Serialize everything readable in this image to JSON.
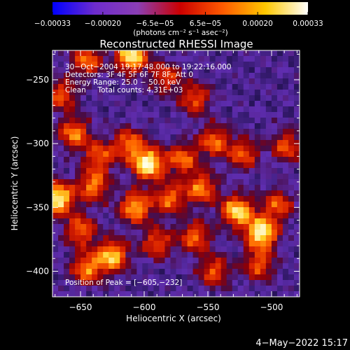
{
  "chart_data": {
    "type": "heatmap",
    "title": "Reconstructed RHESSI Image",
    "xlabel": "Heliocentric X (arcsec)",
    "ylabel": "Heliocentric Y (arcsec)",
    "xlim": [
      -672,
      -478
    ],
    "ylim": [
      -420,
      -227
    ],
    "x_ticks": [
      -650,
      -600,
      -550,
      -500
    ],
    "y_ticks": [
      -250,
      -300,
      -350,
      -400
    ],
    "x_tick_labels": [
      "−650",
      "−600",
      "−550",
      "−500"
    ],
    "y_tick_labels": [
      "−250",
      "−300",
      "−350",
      "−400"
    ],
    "grid": false,
    "colorbar": {
      "placement": "top",
      "range": [
        -0.00033,
        0.00033
      ],
      "tick_values": [
        -0.00033,
        -0.0002,
        -6.5e-05,
        6.5e-05,
        0.0002,
        0.00033
      ],
      "tick_labels": [
        "−0.00033",
        "−0.00020",
        "−6.5e−05",
        "6.5e−05",
        "0.00020",
        "0.00033"
      ],
      "units_label": "(photons cm⁻² s⁻¹ asec⁻²)",
      "colors": [
        "#0000ff",
        "#6e2ccc",
        "#8a3eb4",
        "#cc0000",
        "#ff5a00",
        "#ffc800",
        "#ffffff"
      ]
    },
    "annotations": {
      "time_range": "30−Oct−2004 19:17:48.000 to 19:22:16.000",
      "detectors": "Detectors: 3F 4F 5F 6F 7F 8F, Att 0",
      "energy_range": "Energy Range: 25.0 − 50.0 keV",
      "clean_counts": "Clean     Total counts: 4.31E+03",
      "peak_position": "Position of Peak = [−605,−232]"
    },
    "peak": {
      "x": -605,
      "y": -232
    },
    "blobs": [
      {
        "x": -610,
        "y": -232,
        "a": 0.85
      },
      {
        "x": -645,
        "y": -235,
        "a": 0.55
      },
      {
        "x": -583,
        "y": -248,
        "a": 0.45
      },
      {
        "x": -560,
        "y": -265,
        "a": 0.5
      },
      {
        "x": -665,
        "y": -262,
        "a": 0.5
      },
      {
        "x": -655,
        "y": -292,
        "a": 0.6
      },
      {
        "x": -635,
        "y": -310,
        "a": 0.5
      },
      {
        "x": -612,
        "y": -300,
        "a": 0.55
      },
      {
        "x": -597,
        "y": -316,
        "a": 0.9
      },
      {
        "x": -570,
        "y": -312,
        "a": 0.55
      },
      {
        "x": -545,
        "y": -298,
        "a": 0.55
      },
      {
        "x": -522,
        "y": -308,
        "a": 0.5
      },
      {
        "x": -488,
        "y": -302,
        "a": 0.5
      },
      {
        "x": -668,
        "y": -343,
        "a": 0.9
      },
      {
        "x": -640,
        "y": -333,
        "a": 0.6
      },
      {
        "x": -607,
        "y": -350,
        "a": 0.7
      },
      {
        "x": -580,
        "y": -343,
        "a": 0.55
      },
      {
        "x": -555,
        "y": -335,
        "a": 0.6
      },
      {
        "x": -527,
        "y": -353,
        "a": 0.8
      },
      {
        "x": -508,
        "y": -370,
        "a": 0.9
      },
      {
        "x": -495,
        "y": -348,
        "a": 0.5
      },
      {
        "x": -650,
        "y": -368,
        "a": 0.55
      },
      {
        "x": -625,
        "y": -388,
        "a": 0.75
      },
      {
        "x": -645,
        "y": -398,
        "a": 0.6
      },
      {
        "x": -590,
        "y": -378,
        "a": 0.5
      },
      {
        "x": -560,
        "y": -373,
        "a": 0.55
      },
      {
        "x": -545,
        "y": -400,
        "a": 0.5
      },
      {
        "x": -510,
        "y": -395,
        "a": 0.5
      }
    ],
    "date_stamp": "4−May−2022 15:17"
  }
}
